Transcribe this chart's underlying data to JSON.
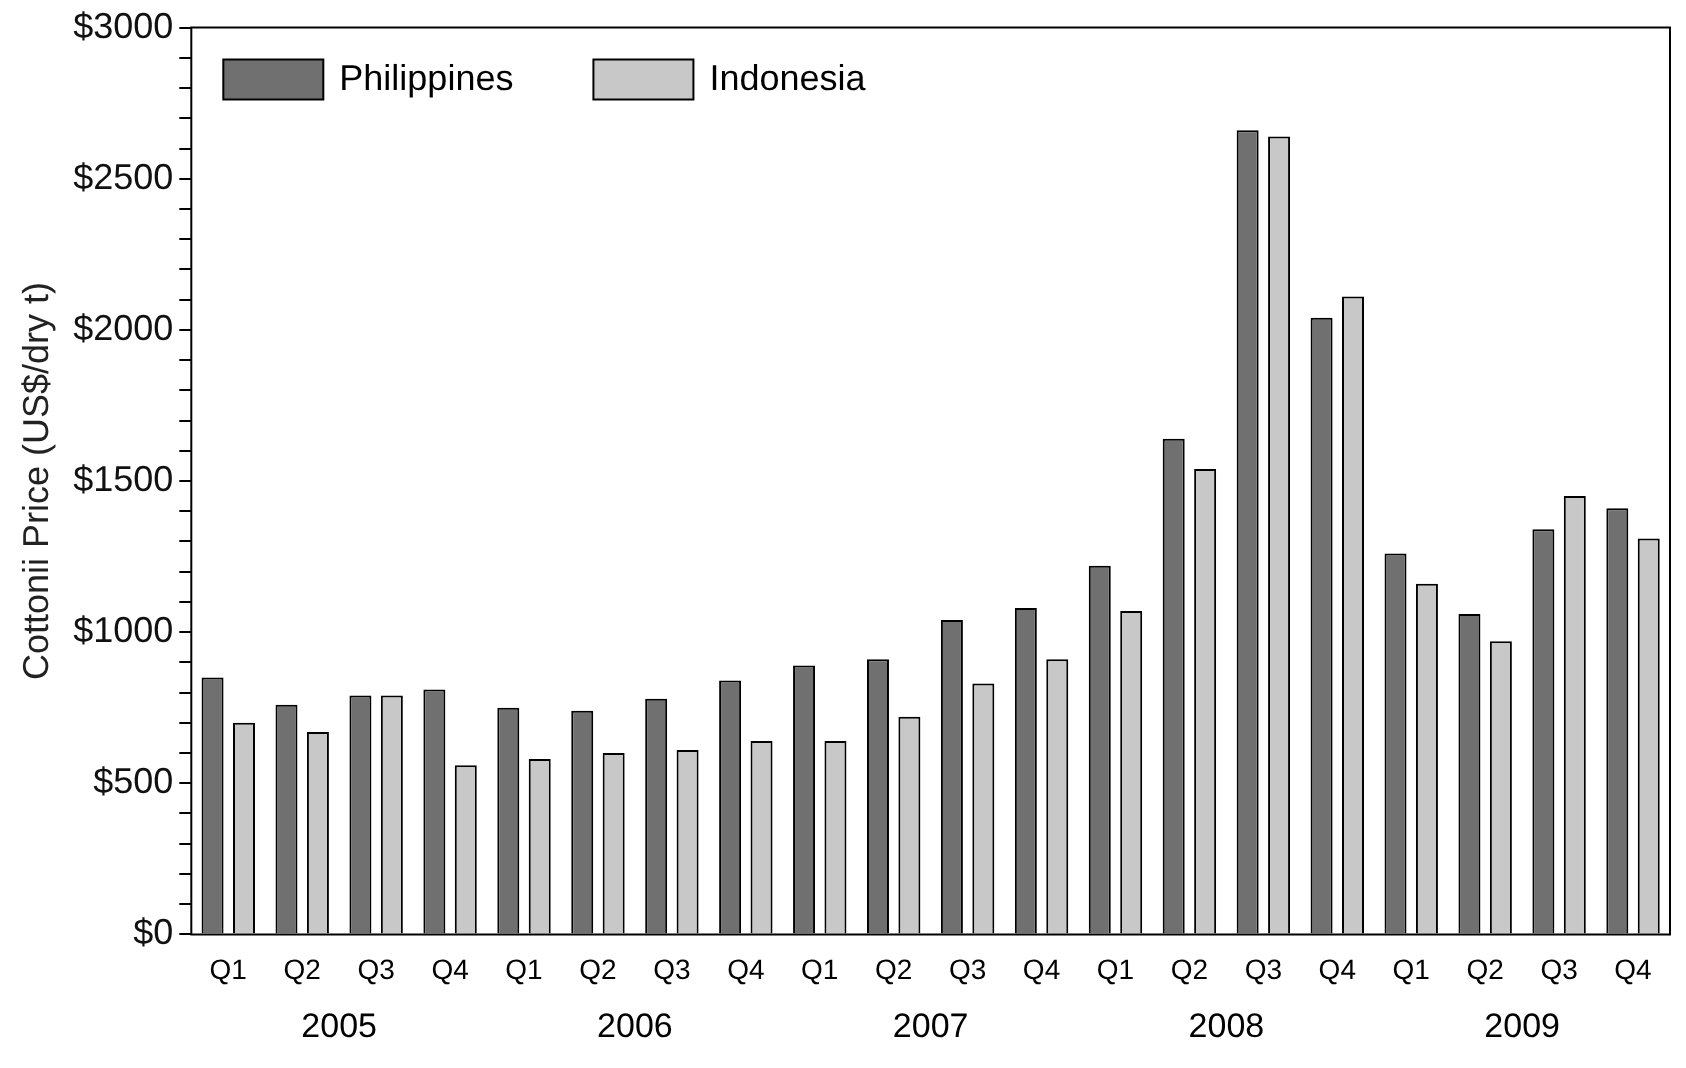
{
  "chart_data": {
    "type": "bar",
    "ylabel": "Cottonii Price (US$/dry t)",
    "categories": [
      "Q1",
      "Q2",
      "Q3",
      "Q4",
      "Q1",
      "Q2",
      "Q3",
      "Q4",
      "Q1",
      "Q2",
      "Q3",
      "Q4",
      "Q1",
      "Q2",
      "Q3",
      "Q4",
      "Q1",
      "Q2",
      "Q3",
      "Q4"
    ],
    "series": [
      {
        "name": "Philippines",
        "color": "#707070",
        "values": [
          850,
          760,
          790,
          810,
          750,
          740,
          780,
          840,
          890,
          910,
          1040,
          1080,
          1220,
          1640,
          2660,
          2040,
          1260,
          1060,
          1340,
          1410
        ]
      },
      {
        "name": "Indonesia",
        "color": "#c8c8c8",
        "values": [
          700,
          670,
          790,
          560,
          580,
          600,
          610,
          640,
          640,
          720,
          830,
          910,
          1070,
          1540,
          2640,
          2110,
          1160,
          970,
          1450,
          1310
        ]
      }
    ],
    "annotations": [
      "2005",
      "2006",
      "2007",
      "2008",
      "2009"
    ],
    "ylim": [
      0,
      3000
    ],
    "yticks": [
      {
        "value": 0,
        "label": "$0"
      },
      {
        "value": 100,
        "label": null
      },
      {
        "value": 200,
        "label": null
      },
      {
        "value": 300,
        "label": null
      },
      {
        "value": 400,
        "label": null
      },
      {
        "value": 500,
        "label": "$500"
      },
      {
        "value": 600,
        "label": null
      },
      {
        "value": 700,
        "label": null
      },
      {
        "value": 800,
        "label": null
      },
      {
        "value": 900,
        "label": null
      },
      {
        "value": 1000,
        "label": "$1000"
      },
      {
        "value": 1100,
        "label": null
      },
      {
        "value": 1200,
        "label": null
      },
      {
        "value": 1300,
        "label": null
      },
      {
        "value": 1400,
        "label": null
      },
      {
        "value": 1500,
        "label": "$1500"
      },
      {
        "value": 1600,
        "label": null
      },
      {
        "value": 1700,
        "label": null
      },
      {
        "value": 1800,
        "label": null
      },
      {
        "value": 1900,
        "label": null
      },
      {
        "value": 2000,
        "label": "$2000"
      },
      {
        "value": 2100,
        "label": null
      },
      {
        "value": 2200,
        "label": null
      },
      {
        "value": 2300,
        "label": null
      },
      {
        "value": 2400,
        "label": null
      },
      {
        "value": 2500,
        "label": "$2500"
      },
      {
        "value": 2600,
        "label": null
      },
      {
        "value": 2700,
        "label": null
      },
      {
        "value": 2800,
        "label": null
      },
      {
        "value": 2900,
        "label": null
      },
      {
        "value": 3000,
        "label": "$3000"
      }
    ],
    "grid": false,
    "legend": "top left"
  }
}
